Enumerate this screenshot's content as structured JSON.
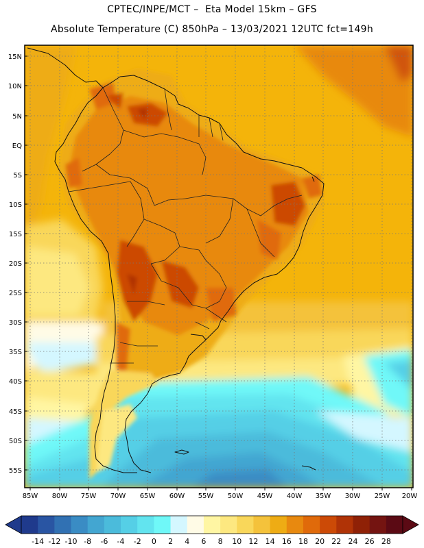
{
  "header": {
    "line1": "CPTEC/INPE/MCT –  Eta Model 15km – GFS",
    "line2": "Absolute Temperature (C) 850hPa – 13/03/2021 12UTC fct=149h"
  },
  "map": {
    "lat_labels": [
      "15N",
      "10N",
      "5N",
      "EQ",
      "5S",
      "10S",
      "15S",
      "20S",
      "25S",
      "30S",
      "35S",
      "40S",
      "45S",
      "50S",
      "55S"
    ],
    "lon_labels": [
      "85W",
      "80W",
      "75W",
      "70W",
      "65W",
      "60W",
      "55W",
      "50W",
      "45W",
      "40W",
      "35W",
      "30W",
      "25W",
      "20W"
    ],
    "lat_range": [
      17.5,
      -57.5
    ],
    "lon_range": [
      -85.5,
      -19.5
    ]
  },
  "colorbar": {
    "labels": [
      "-14",
      "-12",
      "-10",
      "-8",
      "-6",
      "-4",
      "-2",
      "0",
      "2",
      "4",
      "6",
      "8",
      "10",
      "12",
      "14",
      "16",
      "18",
      "20",
      "22",
      "24",
      "26",
      "28"
    ],
    "colors": [
      "#1f3a8c",
      "#2955a3",
      "#3171b3",
      "#3a8cc4",
      "#43a6d1",
      "#4bbbdb",
      "#55cfe6",
      "#62e4ef",
      "#6ff8f8",
      "#d4f7ff",
      "#fffbe6",
      "#fff6a3",
      "#fde880",
      "#f9d75a",
      "#f4c23b",
      "#eeac14",
      "#e8890f",
      "#e06a0a",
      "#cc4a06",
      "#b03306",
      "#8f2106",
      "#741411",
      "#5b0a14"
    ],
    "under_color": "#1f3a8c",
    "over_color": "#5b0a14"
  }
}
